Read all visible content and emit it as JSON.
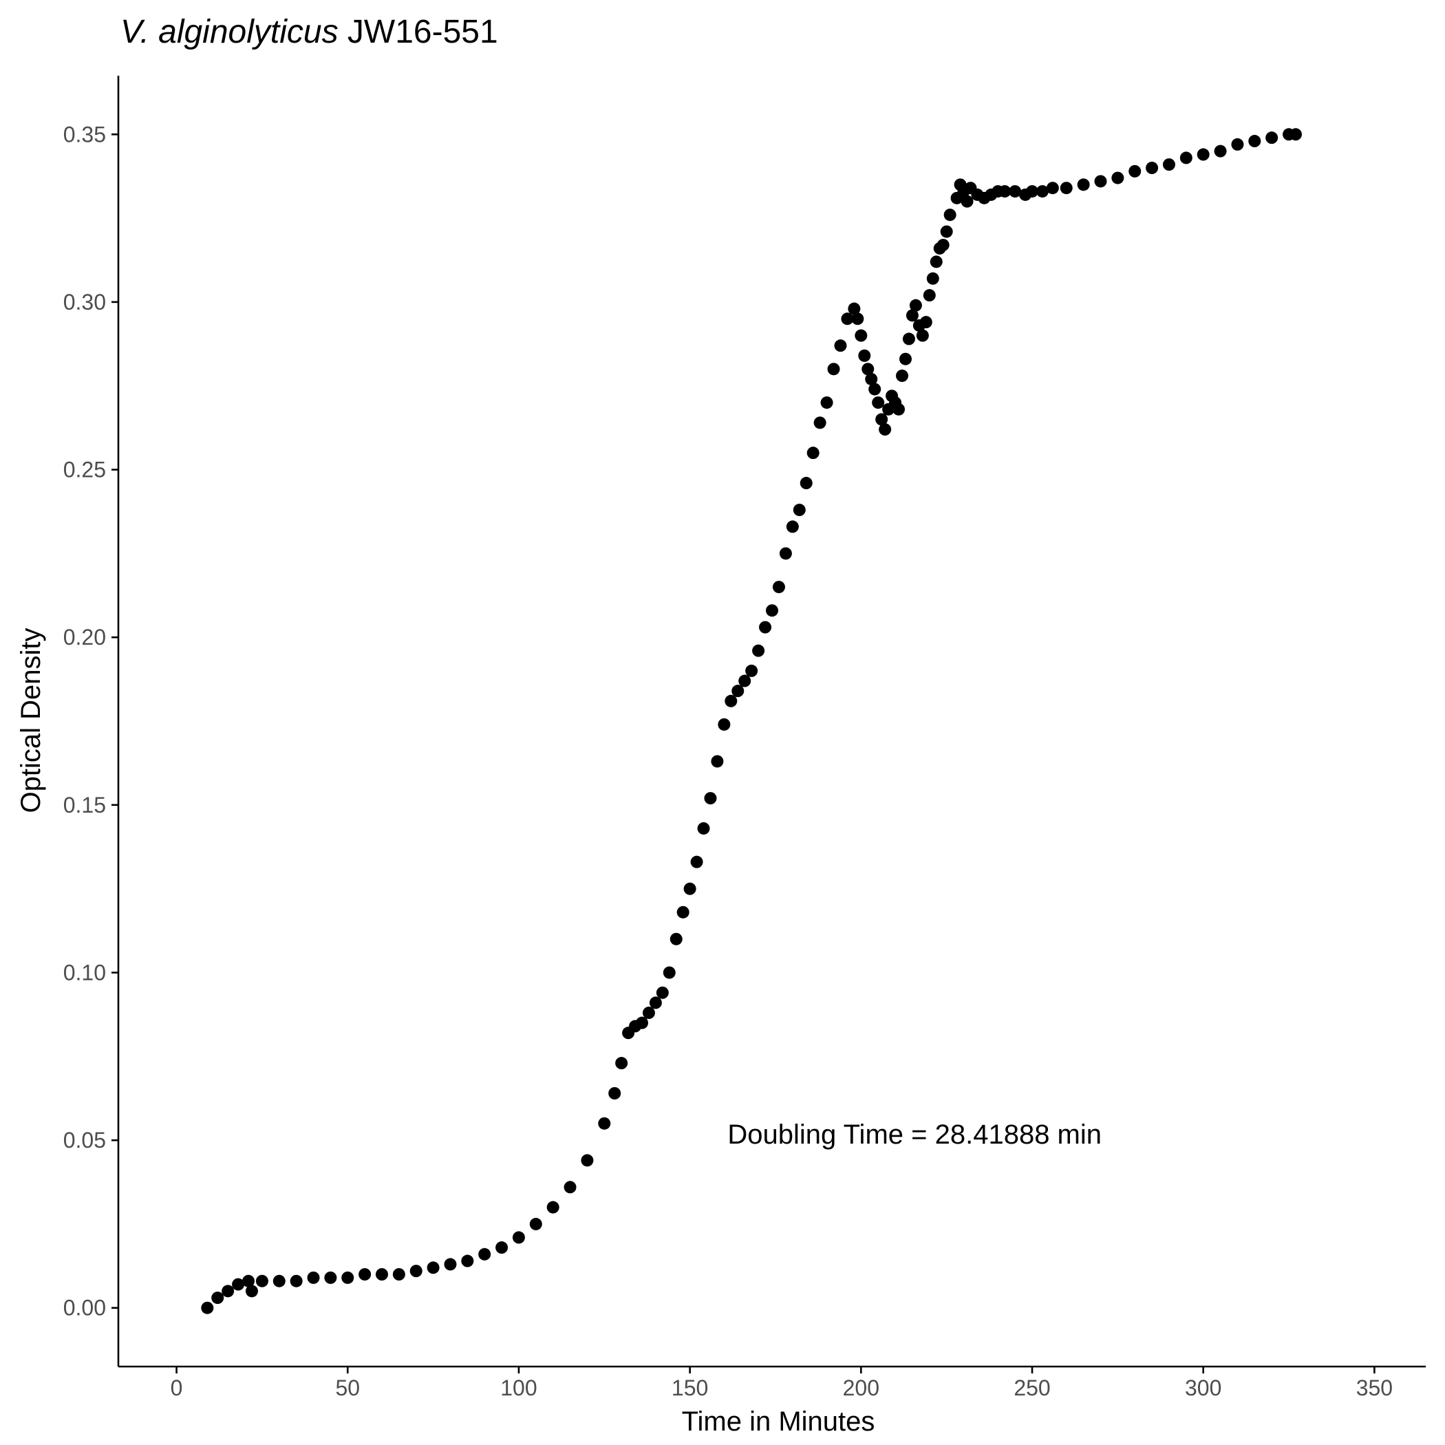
{
  "chart_data": {
    "type": "scatter",
    "title_italic": "V. alginolyticus",
    "title_rest": " JW16-551",
    "xlabel": "Time in Minutes",
    "ylabel": "Optical Density",
    "xlim": [
      -17,
      365
    ],
    "ylim": [
      -0.0175,
      0.3675
    ],
    "x_ticks": [
      0,
      50,
      100,
      150,
      200,
      250,
      300,
      350
    ],
    "x_tick_labels": [
      "0",
      "50",
      "100",
      "150",
      "200",
      "250",
      "300",
      "350"
    ],
    "y_ticks": [
      0,
      0.05,
      0.1,
      0.15,
      0.2,
      0.25,
      0.3,
      0.35
    ],
    "y_tick_labels": [
      "0.00",
      "0.05",
      "0.10",
      "0.15",
      "0.20",
      "0.25",
      "0.30",
      "0.35"
    ],
    "grid": false,
    "point_color": "#000000",
    "annotation": {
      "text": "Doubling Time = 28.41888 min",
      "x": 161,
      "y": 0.049
    },
    "series": [
      {
        "values": [
          [
            9,
            0.0
          ],
          [
            12,
            0.003
          ],
          [
            15,
            0.005
          ],
          [
            18,
            0.007
          ],
          [
            21,
            0.008
          ],
          [
            22,
            0.005
          ],
          [
            25,
            0.008
          ],
          [
            30,
            0.008
          ],
          [
            35,
            0.008
          ],
          [
            40,
            0.009
          ],
          [
            45,
            0.009
          ],
          [
            50,
            0.009
          ],
          [
            55,
            0.01
          ],
          [
            60,
            0.01
          ],
          [
            65,
            0.01
          ],
          [
            70,
            0.011
          ],
          [
            75,
            0.012
          ],
          [
            80,
            0.013
          ],
          [
            85,
            0.014
          ],
          [
            90,
            0.016
          ],
          [
            95,
            0.018
          ],
          [
            100,
            0.021
          ],
          [
            105,
            0.025
          ],
          [
            110,
            0.03
          ],
          [
            115,
            0.036
          ],
          [
            120,
            0.044
          ],
          [
            125,
            0.055
          ],
          [
            128,
            0.064
          ],
          [
            130,
            0.073
          ],
          [
            132,
            0.082
          ],
          [
            134,
            0.084
          ],
          [
            136,
            0.085
          ],
          [
            138,
            0.088
          ],
          [
            140,
            0.091
          ],
          [
            142,
            0.094
          ],
          [
            144,
            0.1
          ],
          [
            146,
            0.11
          ],
          [
            148,
            0.118
          ],
          [
            150,
            0.125
          ],
          [
            152,
            0.133
          ],
          [
            154,
            0.143
          ],
          [
            156,
            0.152
          ],
          [
            158,
            0.163
          ],
          [
            160,
            0.174
          ],
          [
            162,
            0.181
          ],
          [
            164,
            0.184
          ],
          [
            166,
            0.187
          ],
          [
            168,
            0.19
          ],
          [
            170,
            0.196
          ],
          [
            172,
            0.203
          ],
          [
            174,
            0.208
          ],
          [
            176,
            0.215
          ],
          [
            178,
            0.225
          ],
          [
            180,
            0.233
          ],
          [
            182,
            0.238
          ],
          [
            184,
            0.246
          ],
          [
            186,
            0.255
          ],
          [
            188,
            0.264
          ],
          [
            190,
            0.27
          ],
          [
            192,
            0.28
          ],
          [
            194,
            0.287
          ],
          [
            196,
            0.295
          ],
          [
            198,
            0.298
          ],
          [
            199,
            0.295
          ],
          [
            200,
            0.29
          ],
          [
            201,
            0.284
          ],
          [
            202,
            0.28
          ],
          [
            203,
            0.277
          ],
          [
            204,
            0.274
          ],
          [
            205,
            0.27
          ],
          [
            206,
            0.265
          ],
          [
            207,
            0.262
          ],
          [
            208,
            0.268
          ],
          [
            209,
            0.272
          ],
          [
            210,
            0.27
          ],
          [
            211,
            0.268
          ],
          [
            212,
            0.278
          ],
          [
            213,
            0.283
          ],
          [
            214,
            0.289
          ],
          [
            215,
            0.296
          ],
          [
            216,
            0.299
          ],
          [
            217,
            0.293
          ],
          [
            218,
            0.29
          ],
          [
            219,
            0.294
          ],
          [
            220,
            0.302
          ],
          [
            221,
            0.307
          ],
          [
            222,
            0.312
          ],
          [
            223,
            0.316
          ],
          [
            224,
            0.317
          ],
          [
            225,
            0.321
          ],
          [
            226,
            0.326
          ],
          [
            228,
            0.331
          ],
          [
            229,
            0.335
          ],
          [
            230,
            0.333
          ],
          [
            231,
            0.33
          ],
          [
            232,
            0.334
          ],
          [
            234,
            0.332
          ],
          [
            236,
            0.331
          ],
          [
            238,
            0.332
          ],
          [
            240,
            0.333
          ],
          [
            242,
            0.333
          ],
          [
            245,
            0.333
          ],
          [
            248,
            0.332
          ],
          [
            250,
            0.333
          ],
          [
            253,
            0.333
          ],
          [
            256,
            0.334
          ],
          [
            260,
            0.334
          ],
          [
            265,
            0.335
          ],
          [
            270,
            0.336
          ],
          [
            275,
            0.337
          ],
          [
            280,
            0.339
          ],
          [
            285,
            0.34
          ],
          [
            290,
            0.341
          ],
          [
            295,
            0.343
          ],
          [
            300,
            0.344
          ],
          [
            305,
            0.345
          ],
          [
            310,
            0.347
          ],
          [
            315,
            0.348
          ],
          [
            320,
            0.349
          ],
          [
            325,
            0.35
          ],
          [
            327,
            0.35
          ]
        ]
      }
    ]
  }
}
